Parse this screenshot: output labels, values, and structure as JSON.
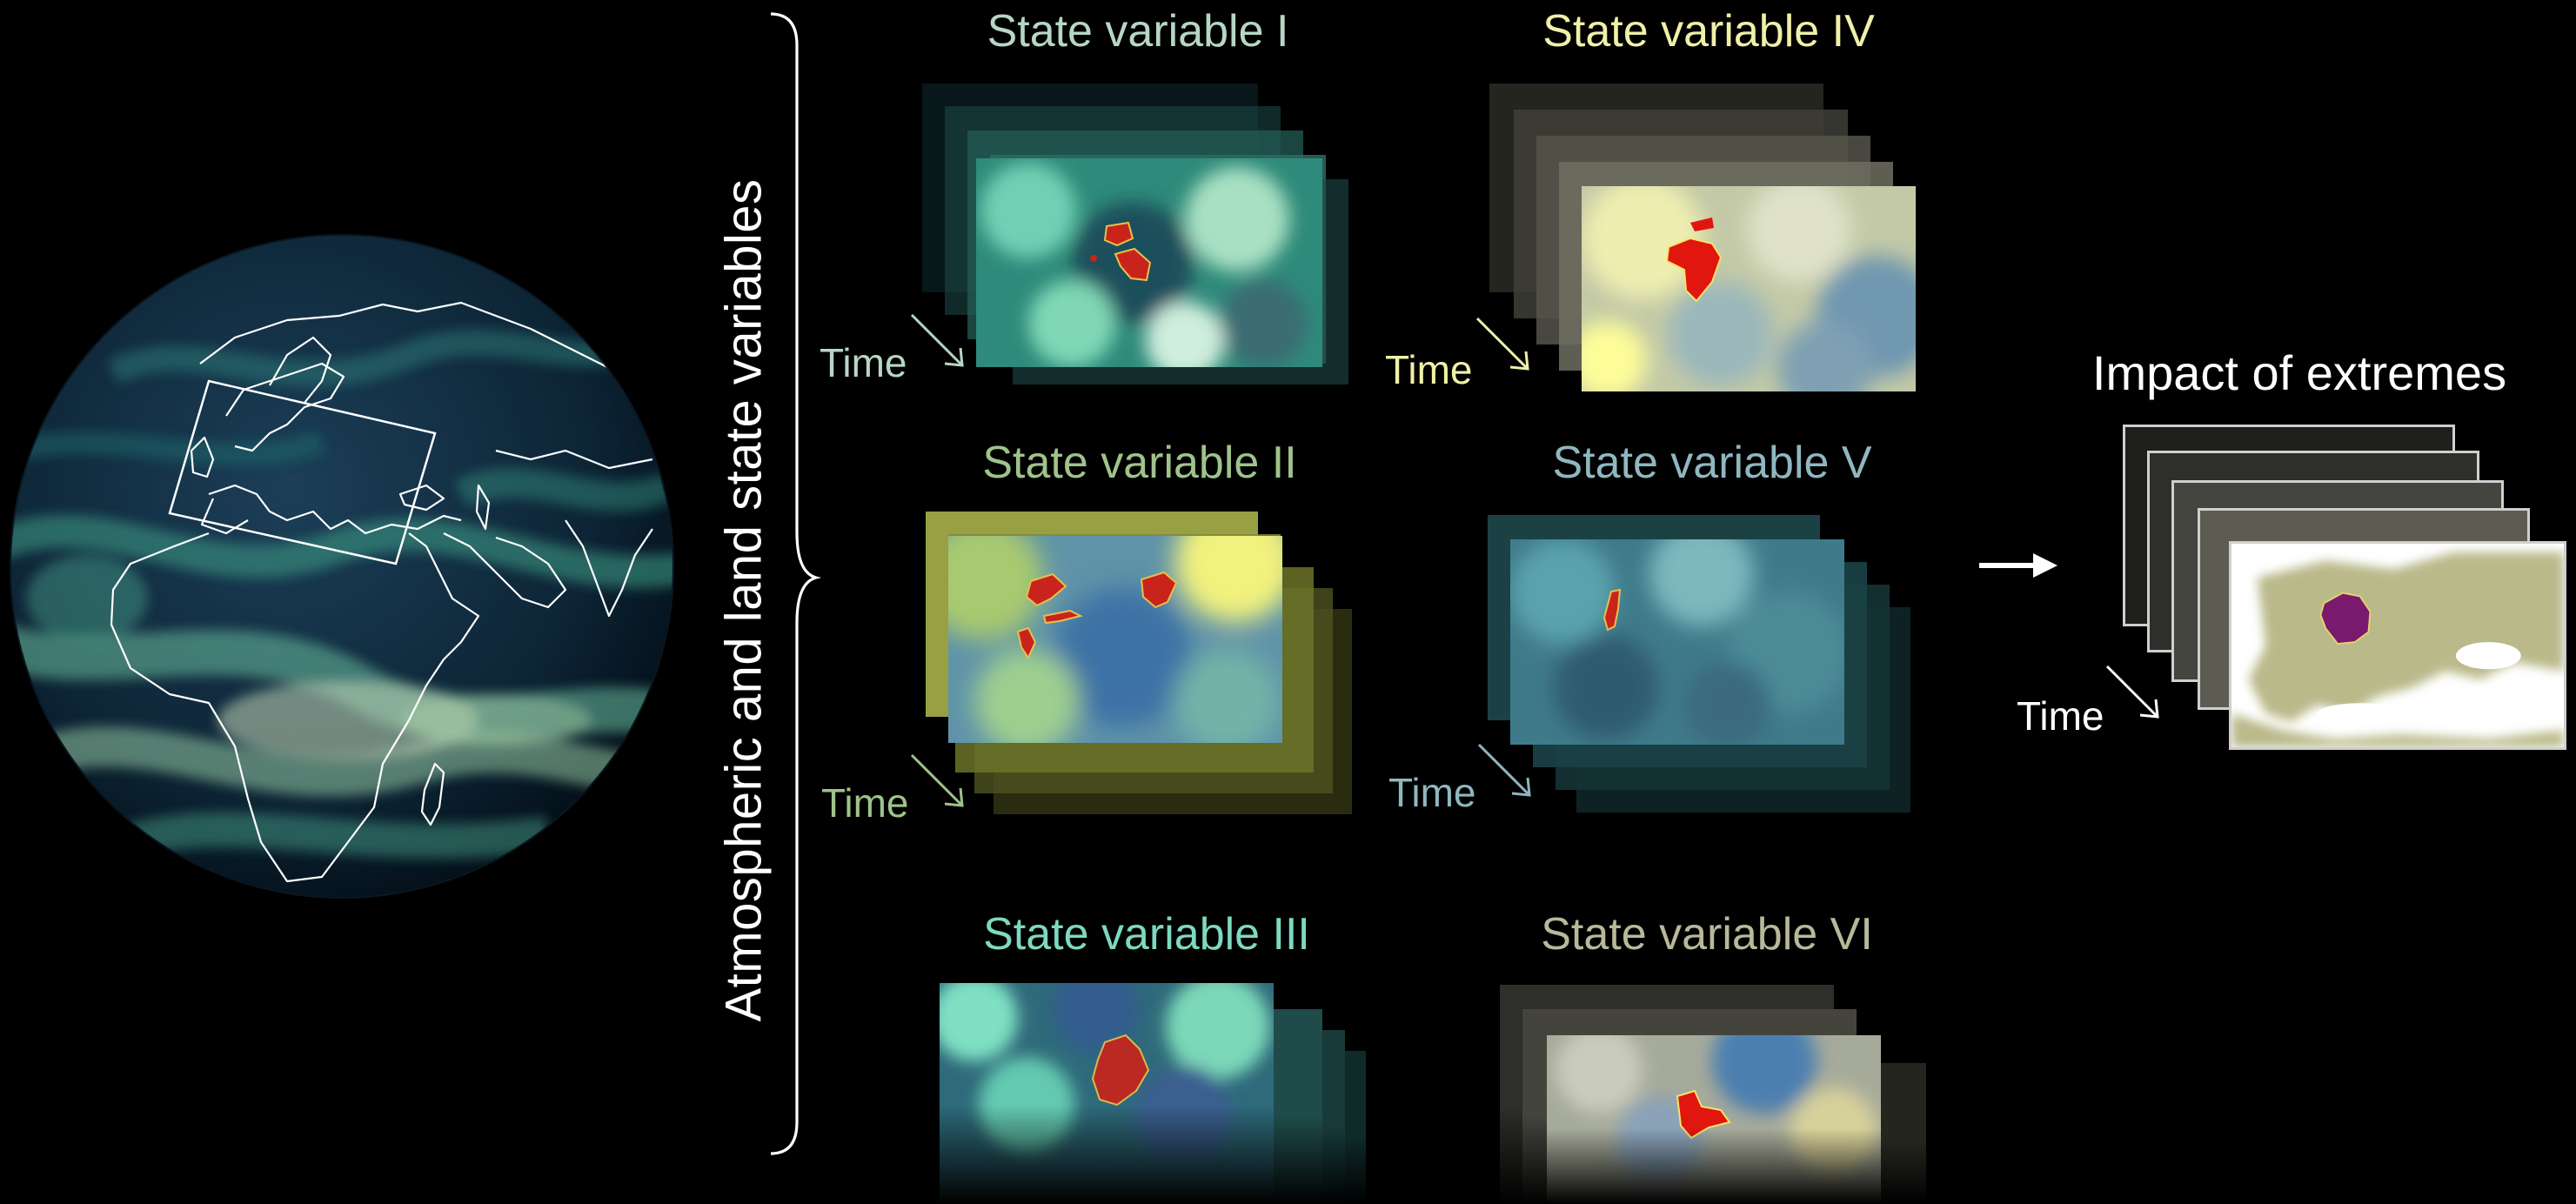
{
  "vertical_label": "Atmospheric and land state variables",
  "panels": {
    "p1": {
      "title": "State variable I",
      "time": "Time",
      "color": "#b7d6c5"
    },
    "p2": {
      "title": "State variable II",
      "time": "Time",
      "color": "#9fc38a"
    },
    "p3": {
      "title": "State variable III",
      "color": "#7dd9bf"
    },
    "p4": {
      "title": "State variable IV",
      "time": "Time",
      "color": "#f0f0a9"
    },
    "p5": {
      "title": "State variable V",
      "time": "Time",
      "color": "#8fb7c0"
    },
    "p6": {
      "title": "State variable VI",
      "color": "#b8b99a"
    }
  },
  "impact": {
    "title": "Impact of extremes",
    "time": "Time",
    "highlight_color": "#7a1a6e"
  },
  "colors": {
    "background": "#000000",
    "extreme_region": "#c8241c",
    "globe_ocean": "#0e2a3e",
    "globe_flow": "#3f9d8a"
  },
  "icons": [
    "globe-icon",
    "europe-selection-box",
    "arrow-right-icon",
    "time-arrow-icon"
  ]
}
